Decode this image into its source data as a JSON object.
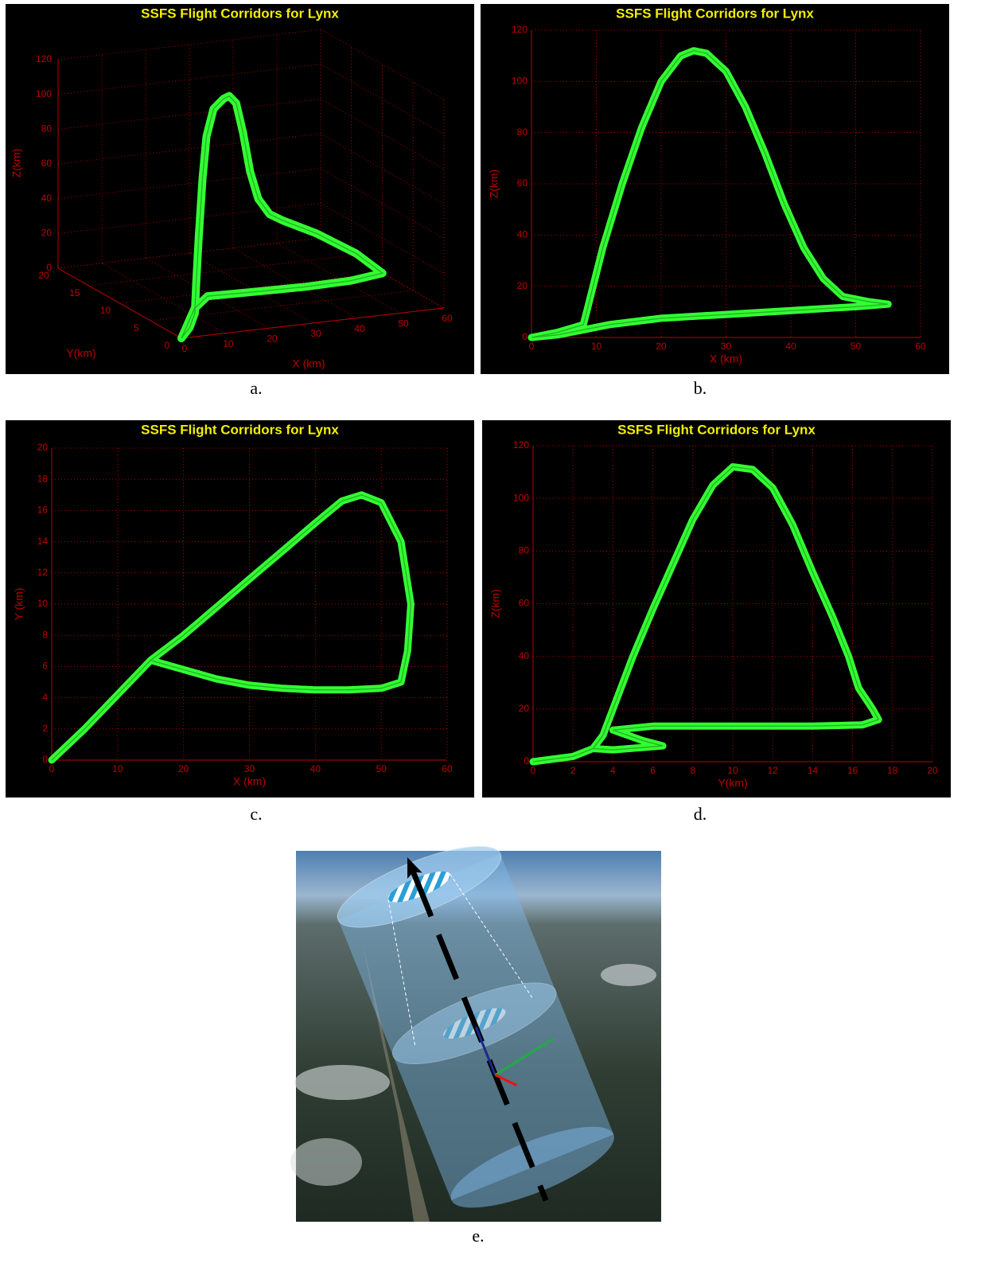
{
  "chart_data": [
    {
      "type": "line3d",
      "title": "SSFS Flight Corridors for Lynx",
      "x_label": "X (km)",
      "y_label": "Y(km)",
      "z_label": "Z(km)",
      "color": "#33ff33",
      "grid": true,
      "xlim": [
        0,
        60
      ],
      "xticks": [
        0,
        10,
        20,
        30,
        40,
        50,
        60
      ],
      "ylim": [
        0,
        20
      ],
      "yticks": [
        0,
        5,
        10,
        15,
        20
      ],
      "zlim": [
        0,
        120
      ],
      "zticks": [
        0,
        20,
        40,
        60,
        80,
        100,
        120
      ],
      "x": [
        0,
        4,
        8,
        9,
        11,
        14,
        17,
        20,
        23,
        25,
        28,
        31,
        34,
        38,
        42,
        47,
        52,
        54,
        53,
        45,
        35,
        25,
        15,
        10,
        5,
        0
      ],
      "y": [
        0,
        1.5,
        3.5,
        4,
        5,
        6.5,
        8,
        9,
        9.5,
        10,
        11,
        12,
        13,
        14.5,
        15.5,
        17,
        15,
        10,
        5,
        4.5,
        4.7,
        5.3,
        6.4,
        5,
        2.5,
        0
      ],
      "z": [
        0,
        2,
        5,
        20,
        45,
        75,
        95,
        108,
        112,
        112,
        105,
        85,
        60,
        40,
        28,
        20,
        15,
        13,
        12,
        11,
        10,
        9,
        7,
        4,
        2,
        0
      ]
    },
    {
      "type": "line",
      "title": "SSFS Flight Corridors for Lynx",
      "x_label": "X (km)",
      "y_label": "Z(km)",
      "color": "#33ff33",
      "grid": true,
      "xlim": [
        0,
        60
      ],
      "xticks": [
        0,
        10,
        20,
        30,
        40,
        50,
        60
      ],
      "ylim": [
        0,
        120
      ],
      "yticks": [
        0,
        20,
        40,
        60,
        80,
        100,
        120
      ],
      "x": [
        0,
        4,
        8,
        9,
        11,
        14,
        17,
        20,
        23,
        25,
        27,
        30,
        33,
        36,
        39,
        42,
        45,
        48,
        52,
        55,
        50,
        40,
        30,
        20,
        12,
        8,
        4,
        0
      ],
      "values": [
        0,
        2,
        5,
        15,
        35,
        60,
        82,
        100,
        110,
        112,
        111,
        104,
        90,
        72,
        52,
        35,
        23,
        16,
        14,
        13,
        12,
        10.5,
        9,
        7.5,
        5,
        3,
        1,
        0
      ]
    },
    {
      "type": "line",
      "title": "SSFS Flight Corridors for Lynx",
      "x_label": "X (km)",
      "y_label": "Y (km)",
      "color": "#33ff33",
      "grid": true,
      "xlim": [
        0,
        60
      ],
      "xticks": [
        0,
        10,
        20,
        30,
        40,
        50,
        60
      ],
      "ylim": [
        0,
        20
      ],
      "yticks": [
        0,
        2,
        4,
        6,
        8,
        10,
        12,
        14,
        16,
        18,
        20
      ],
      "x": [
        0,
        5,
        10,
        15,
        20,
        25,
        30,
        35,
        40,
        44,
        47,
        50,
        53,
        54.5,
        54,
        53,
        50,
        45,
        40,
        35,
        30,
        25,
        20,
        15
      ],
      "values": [
        0,
        2,
        4.2,
        6.4,
        8,
        9.8,
        11.6,
        13.4,
        15.2,
        16.6,
        17,
        16.5,
        14,
        10,
        7,
        5,
        4.6,
        4.5,
        4.5,
        4.6,
        4.8,
        5.2,
        5.8,
        6.4
      ]
    },
    {
      "type": "line",
      "title": "SSFS Flight Corridors for Lynx",
      "x_label": "Y(km)",
      "y_label": "Z(km)",
      "color": "#33ff33",
      "grid": true,
      "xlim": [
        0,
        20
      ],
      "xticks": [
        0,
        2,
        4,
        6,
        8,
        10,
        12,
        14,
        16,
        18,
        20
      ],
      "ylim": [
        0,
        120
      ],
      "yticks": [
        0,
        20,
        40,
        60,
        80,
        100,
        120
      ],
      "x": [
        0,
        2,
        3,
        3.5,
        4,
        5,
        6,
        7,
        8,
        9,
        10,
        11,
        12,
        13,
        14,
        15,
        15.8,
        16.3,
        17,
        17.3,
        16.5,
        14,
        10,
        6,
        4,
        5.5,
        6.5,
        4,
        3
      ],
      "values": [
        0,
        2,
        5,
        10,
        20,
        40,
        58,
        75,
        92,
        105,
        112,
        111,
        104,
        90,
        72,
        55,
        40,
        28,
        20,
        16,
        14,
        13.5,
        13.5,
        13.5,
        12,
        8,
        6,
        4.5,
        5
      ]
    }
  ],
  "captions": [
    "a.",
    "b.",
    "c.",
    "d.",
    "e."
  ]
}
